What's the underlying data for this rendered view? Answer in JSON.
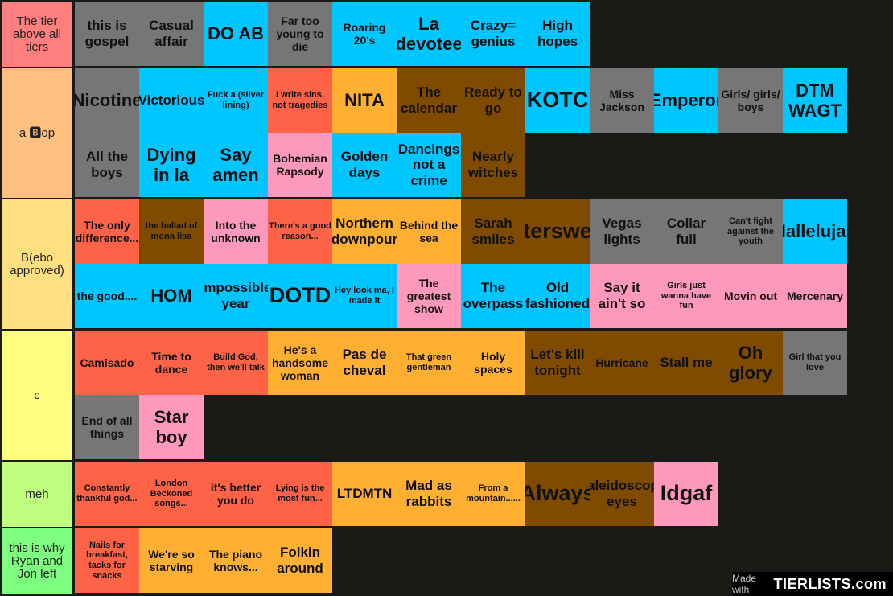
{
  "tiers": [
    {
      "label": "The tier above all tiers",
      "color": "#ff7f7f",
      "items": [
        {
          "text": "this is gospel",
          "color": "gray",
          "size": "l"
        },
        {
          "text": "Casual affair",
          "color": "gray",
          "size": "l"
        },
        {
          "text": "DO AB",
          "color": "cyan",
          "size": "xl"
        },
        {
          "text": "Far too young to die",
          "color": "gray",
          "size": "m"
        },
        {
          "text": "Roaring 20's",
          "color": "cyan",
          "size": "m"
        },
        {
          "text": "La devotee",
          "color": "cyan",
          "size": "xl"
        },
        {
          "text": "Crazy= genius",
          "color": "cyan",
          "size": "l"
        },
        {
          "text": "High hopes",
          "color": "cyan",
          "size": "l"
        }
      ]
    },
    {
      "label": "a 🅱op",
      "color": "#ffbf7f",
      "items": [
        {
          "text": "Nicotine",
          "color": "gray",
          "size": "xl"
        },
        {
          "text": "Victorious",
          "color": "cyan",
          "size": "l"
        },
        {
          "text": "Fuck a (silver lining)",
          "color": "cyan",
          "size": "s"
        },
        {
          "text": "I write sins, not tragedies",
          "color": "red",
          "size": "s"
        },
        {
          "text": "NITA",
          "color": "orange",
          "size": "xl"
        },
        {
          "text": "The calendar",
          "color": "brown",
          "size": "l"
        },
        {
          "text": "Ready to go",
          "color": "brown",
          "size": "l"
        },
        {
          "text": "KOTC",
          "color": "cyan",
          "size": "xxl"
        },
        {
          "text": "Miss Jackson",
          "color": "gray",
          "size": "m"
        },
        {
          "text": "Emperor",
          "color": "cyan",
          "size": "xl"
        },
        {
          "text": "Girls/ girls/ boys",
          "color": "gray",
          "size": "m"
        },
        {
          "text": "DTM WAGT",
          "color": "cyan",
          "size": "xl"
        },
        {
          "text": "All the boys",
          "color": "gray",
          "size": "l"
        },
        {
          "text": "Dying in la",
          "color": "cyan",
          "size": "xl"
        },
        {
          "text": "Say amen",
          "color": "cyan",
          "size": "xl"
        },
        {
          "text": "Bohemian Rapsody",
          "color": "pink",
          "size": "m"
        },
        {
          "text": "Golden days",
          "color": "cyan",
          "size": "l"
        },
        {
          "text": "Dancings not a crime",
          "color": "cyan",
          "size": "l"
        },
        {
          "text": "Nearly witches",
          "color": "brown",
          "size": "l"
        }
      ]
    },
    {
      "label": "B(ebo approved)",
      "color": "#ffdf7f",
      "items": [
        {
          "text": "The only difference...",
          "color": "red",
          "size": "m"
        },
        {
          "text": "the ballad of mona lisa",
          "color": "brown",
          "size": "s"
        },
        {
          "text": "Into the unknown",
          "color": "pink",
          "size": "m"
        },
        {
          "text": "There's a good reason...",
          "color": "red",
          "size": "s"
        },
        {
          "text": "Northern downpour",
          "color": "orange",
          "size": "l"
        },
        {
          "text": "Behind the sea",
          "color": "orange",
          "size": "m"
        },
        {
          "text": "Sarah smiles",
          "color": "brown",
          "size": "l"
        },
        {
          "text": "Intersweet",
          "color": "brown",
          "size": "xxl"
        },
        {
          "text": "Vegas lights",
          "color": "gray",
          "size": "l"
        },
        {
          "text": "Collar full",
          "color": "gray",
          "size": "l"
        },
        {
          "text": "Can't fight against the youth",
          "color": "gray",
          "size": "s"
        },
        {
          "text": "Hallelujah",
          "color": "cyan",
          "size": "xl"
        },
        {
          "text": "the good....",
          "color": "cyan",
          "size": "m"
        },
        {
          "text": "HOM",
          "color": "cyan",
          "size": "xl"
        },
        {
          "text": "Impossible year",
          "color": "cyan",
          "size": "l"
        },
        {
          "text": "DOTD",
          "color": "cyan",
          "size": "xxl"
        },
        {
          "text": "Hey look ma, I made it",
          "color": "cyan",
          "size": "s"
        },
        {
          "text": "The greatest show",
          "color": "pink",
          "size": "m"
        },
        {
          "text": "The overpass",
          "color": "cyan",
          "size": "l"
        },
        {
          "text": "Old fashioned",
          "color": "cyan",
          "size": "l"
        },
        {
          "text": "Say it ain't so",
          "color": "pink",
          "size": "l"
        },
        {
          "text": "Girls just wanna have fun",
          "color": "pink",
          "size": "s"
        },
        {
          "text": "Movin out",
          "color": "pink",
          "size": "m"
        },
        {
          "text": "Mercenary",
          "color": "pink",
          "size": "m"
        }
      ]
    },
    {
      "label": "c",
      "color": "#ffff7f",
      "items": [
        {
          "text": "Camisado",
          "color": "red",
          "size": "m"
        },
        {
          "text": "Time to dance",
          "color": "red",
          "size": "m"
        },
        {
          "text": "Build God, then we'll talk",
          "color": "red",
          "size": "s"
        },
        {
          "text": "He's a handsome woman",
          "color": "orange",
          "size": "m"
        },
        {
          "text": "Pas de cheval",
          "color": "orange",
          "size": "l"
        },
        {
          "text": "That green gentleman",
          "color": "orange",
          "size": "s"
        },
        {
          "text": "Holy spaces",
          "color": "orange",
          "size": "m"
        },
        {
          "text": "Let's kill tonight",
          "color": "brown",
          "size": "l"
        },
        {
          "text": "Hurricane",
          "color": "brown",
          "size": "m"
        },
        {
          "text": "Stall me",
          "color": "brown",
          "size": "l"
        },
        {
          "text": "Oh glory",
          "color": "brown",
          "size": "xl"
        },
        {
          "text": "Girl that you love",
          "color": "gray",
          "size": "s"
        },
        {
          "text": "End of all things",
          "color": "gray",
          "size": "m"
        },
        {
          "text": "Star boy",
          "color": "pink",
          "size": "xl"
        }
      ]
    },
    {
      "label": "meh",
      "color": "#bfff7f",
      "items": [
        {
          "text": "Constantly thankful god...",
          "color": "red",
          "size": "s"
        },
        {
          "text": "London Beckoned songs...",
          "color": "red",
          "size": "s"
        },
        {
          "text": "it's better you do",
          "color": "red",
          "size": "m"
        },
        {
          "text": "Lying is the most fun...",
          "color": "red",
          "size": "s"
        },
        {
          "text": "LTDMTN",
          "color": "orange",
          "size": "l"
        },
        {
          "text": "Mad as rabbits",
          "color": "orange",
          "size": "l"
        },
        {
          "text": "From a mountain......",
          "color": "orange",
          "size": "s"
        },
        {
          "text": "Always",
          "color": "brown",
          "size": "xxl"
        },
        {
          "text": "Kaleidoscope eyes",
          "color": "brown",
          "size": "l"
        },
        {
          "text": "Idgaf",
          "color": "pink",
          "size": "xxl"
        }
      ]
    },
    {
      "label": "this is why Ryan and Jon left",
      "color": "#7fff7f",
      "items": [
        {
          "text": "Nails for breakfast, tacks for snacks",
          "color": "red",
          "size": "s"
        },
        {
          "text": "We're so starving",
          "color": "orange",
          "size": "m"
        },
        {
          "text": "The piano knows...",
          "color": "orange",
          "size": "m"
        },
        {
          "text": "Folkin around",
          "color": "orange",
          "size": "l"
        }
      ]
    }
  ],
  "watermark": {
    "made_with": "Made with",
    "brand": "TIERLISTS.com"
  }
}
